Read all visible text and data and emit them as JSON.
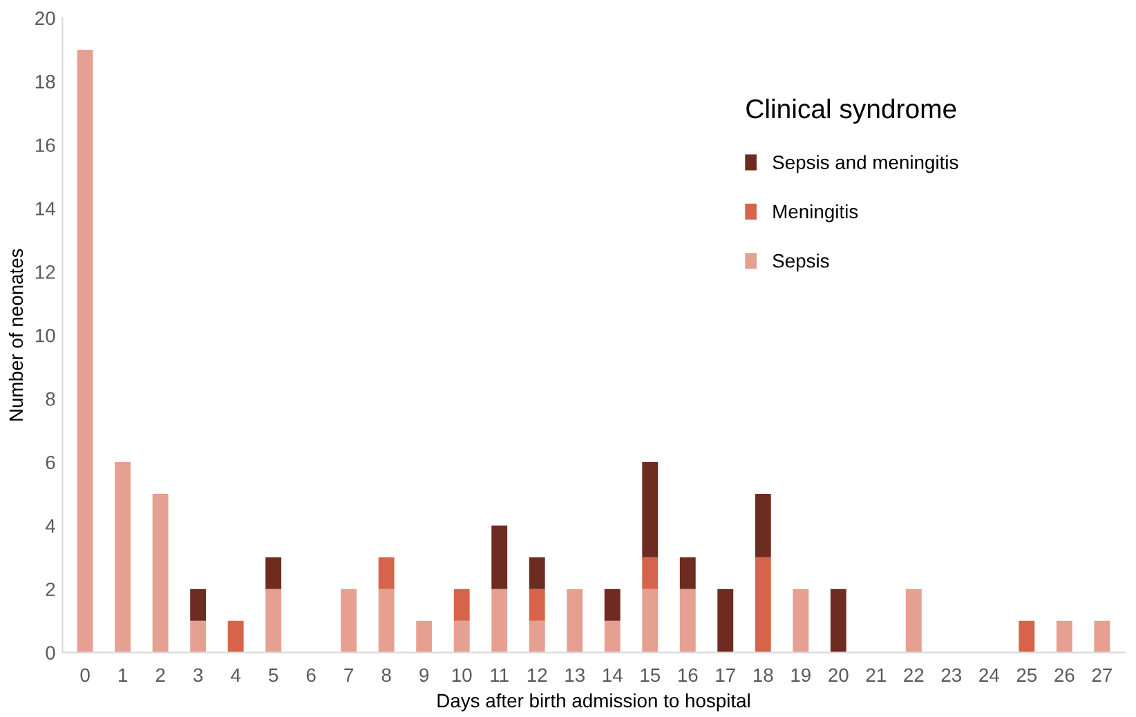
{
  "chart_data": {
    "type": "bar",
    "stacked": true,
    "xlabel": "Days after birth admission to hospital",
    "ylabel": "Number of neonates",
    "legend_title": "Clinical syndrome",
    "legend": "top right",
    "grid": false,
    "categories": [
      "0",
      "1",
      "2",
      "3",
      "4",
      "5",
      "6",
      "7",
      "8",
      "9",
      "10",
      "11",
      "12",
      "13",
      "14",
      "15",
      "16",
      "17",
      "18",
      "19",
      "20",
      "21",
      "22",
      "23",
      "24",
      "25",
      "26",
      "27"
    ],
    "ylim": [
      0,
      20
    ],
    "yticks": [
      0,
      2,
      4,
      6,
      8,
      10,
      12,
      14,
      16,
      18,
      20
    ],
    "series": [
      {
        "name": "Sepsis",
        "color": "#e6a091",
        "values": [
          19,
          6,
          5,
          1,
          0,
          2,
          0,
          2,
          2,
          1,
          1,
          2,
          1,
          2,
          1,
          2,
          2,
          0,
          0,
          2,
          0,
          0,
          2,
          0,
          0,
          0,
          1,
          1
        ]
      },
      {
        "name": "Meningitis",
        "color": "#d6644a",
        "values": [
          0,
          0,
          0,
          0,
          1,
          0,
          0,
          0,
          1,
          0,
          1,
          0,
          1,
          0,
          0,
          1,
          0,
          0,
          3,
          0,
          0,
          0,
          0,
          0,
          0,
          1,
          0,
          0
        ]
      },
      {
        "name": "Sepsis and meningitis",
        "color": "#6e2b1f",
        "values": [
          0,
          0,
          0,
          1,
          0,
          1,
          0,
          0,
          0,
          0,
          0,
          2,
          1,
          0,
          1,
          3,
          1,
          2,
          2,
          0,
          2,
          0,
          0,
          0,
          0,
          0,
          0,
          0
        ]
      }
    ]
  }
}
